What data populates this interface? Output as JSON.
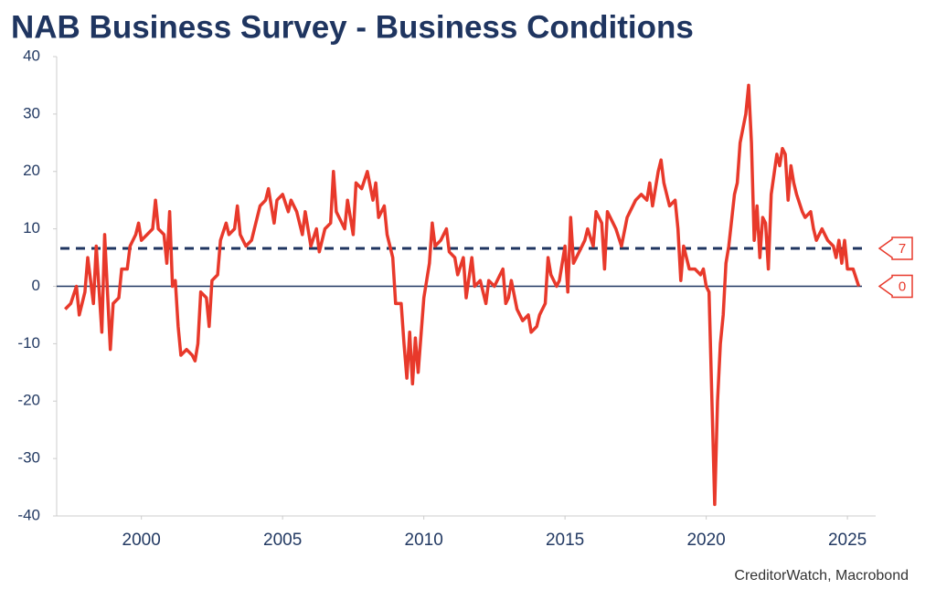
{
  "chart_data": {
    "type": "line",
    "title": "NAB Business Survey - Business Conditions",
    "source": "CreditorWatch, Macrobond",
    "color": "#e8392b",
    "x": [
      1997.3,
      1997.5,
      1997.7,
      1997.8,
      1998.0,
      1998.1,
      1998.3,
      1998.4,
      1998.6,
      1998.7,
      1998.9,
      1999.0,
      1999.2,
      1999.3,
      1999.5,
      1999.6,
      1999.8,
      1999.9,
      2000.0,
      2000.2,
      2000.4,
      2000.5,
      2000.6,
      2000.8,
      2000.9,
      2001.0,
      2001.1,
      2001.2,
      2001.3,
      2001.4,
      2001.6,
      2001.8,
      2001.9,
      2002.0,
      2002.1,
      2002.3,
      2002.4,
      2002.5,
      2002.7,
      2002.8,
      2003.0,
      2003.1,
      2003.3,
      2003.4,
      2003.5,
      2003.7,
      2003.9,
      2004.0,
      2004.2,
      2004.4,
      2004.5,
      2004.7,
      2004.8,
      2005.0,
      2005.2,
      2005.3,
      2005.5,
      2005.7,
      2005.8,
      2006.0,
      2006.2,
      2006.3,
      2006.5,
      2006.7,
      2006.8,
      2006.9,
      2007.0,
      2007.2,
      2007.3,
      2007.5,
      2007.6,
      2007.8,
      2008.0,
      2008.2,
      2008.3,
      2008.4,
      2008.6,
      2008.7,
      2008.9,
      2009.0,
      2009.2,
      2009.3,
      2009.4,
      2009.5,
      2009.6,
      2009.7,
      2009.8,
      2010.0,
      2010.2,
      2010.3,
      2010.4,
      2010.6,
      2010.8,
      2010.9,
      2011.1,
      2011.2,
      2011.4,
      2011.5,
      2011.7,
      2011.8,
      2012.0,
      2012.2,
      2012.3,
      2012.5,
      2012.7,
      2012.8,
      2012.9,
      2013.0,
      2013.1,
      2013.3,
      2013.5,
      2013.7,
      2013.8,
      2014.0,
      2014.1,
      2014.3,
      2014.4,
      2014.5,
      2014.7,
      2014.8,
      2015.0,
      2015.1,
      2015.2,
      2015.3,
      2015.5,
      2015.7,
      2015.8,
      2016.0,
      2016.1,
      2016.3,
      2016.4,
      2016.5,
      2016.7,
      2016.8,
      2017.0,
      2017.2,
      2017.3,
      2017.5,
      2017.7,
      2017.9,
      2018.0,
      2018.1,
      2018.3,
      2018.4,
      2018.5,
      2018.7,
      2018.9,
      2019.0,
      2019.1,
      2019.2,
      2019.4,
      2019.6,
      2019.8,
      2019.9,
      2020.0,
      2020.1,
      2020.3,
      2020.4,
      2020.5,
      2020.6,
      2020.7,
      2020.8,
      2021.0,
      2021.1,
      2021.2,
      2021.4,
      2021.5,
      2021.6,
      2021.7,
      2021.8,
      2021.9,
      2022.0,
      2022.1,
      2022.2,
      2022.3,
      2022.5,
      2022.6,
      2022.7,
      2022.8,
      2022.9,
      2023.0,
      2023.1,
      2023.2,
      2023.4,
      2023.5,
      2023.7,
      2023.8,
      2023.9,
      2024.1,
      2024.3,
      2024.5,
      2024.6,
      2024.7,
      2024.8,
      2024.9,
      2025.0,
      2025.2,
      2025.4
    ],
    "values": [
      -4,
      -3,
      0,
      -5,
      -1,
      5,
      -3,
      7,
      -8,
      9,
      -11,
      -3,
      -2,
      3,
      3,
      7,
      9,
      11,
      8,
      9,
      10,
      15,
      10,
      9,
      4,
      13,
      0,
      1,
      -7,
      -12,
      -11,
      -12,
      -13,
      -10,
      -1,
      -2,
      -7,
      1,
      2,
      8,
      11,
      9,
      10,
      14,
      9,
      7,
      8,
      10,
      14,
      15,
      17,
      11,
      15,
      16,
      13,
      15,
      13,
      9,
      13,
      7,
      10,
      6,
      10,
      11,
      20,
      13,
      12,
      10,
      15,
      9,
      18,
      17,
      20,
      15,
      18,
      12,
      14,
      9,
      5,
      -3,
      -3,
      -10,
      -16,
      -8,
      -17,
      -9,
      -15,
      -2,
      4,
      11,
      7,
      8,
      10,
      6,
      5,
      2,
      5,
      -2,
      5,
      0,
      1,
      -3,
      1,
      0,
      2,
      3,
      -3,
      -2,
      1,
      -4,
      -6,
      -5,
      -8,
      -7,
      -5,
      -3,
      5,
      2,
      0,
      1,
      7,
      -1,
      12,
      4,
      6,
      8,
      10,
      7,
      13,
      11,
      3,
      13,
      11,
      10,
      7,
      12,
      13,
      15,
      16,
      15,
      18,
      14,
      20,
      22,
      18,
      14,
      15,
      10,
      1,
      7,
      3,
      3,
      2,
      3,
      0,
      -1,
      -38,
      -20,
      -10,
      -5,
      4,
      7,
      16,
      18,
      25,
      30,
      35,
      25,
      8,
      14,
      5,
      12,
      11,
      3,
      16,
      23,
      21,
      24,
      23,
      15,
      21,
      18,
      16,
      13,
      12,
      13,
      10,
      8,
      10,
      8,
      7,
      5,
      8,
      4,
      8,
      3,
      3,
      0
    ],
    "last_label": "0",
    "reference_line": {
      "value": 6.6,
      "label": "7",
      "color": "#1f3560"
    },
    "xlim": [
      1997,
      2026
    ],
    "xticks": [
      2000,
      2005,
      2010,
      2015,
      2020,
      2025
    ],
    "ylim": [
      -40,
      40
    ],
    "yticks": [
      -40,
      -30,
      -20,
      -10,
      0,
      10,
      20,
      30,
      40
    ]
  }
}
